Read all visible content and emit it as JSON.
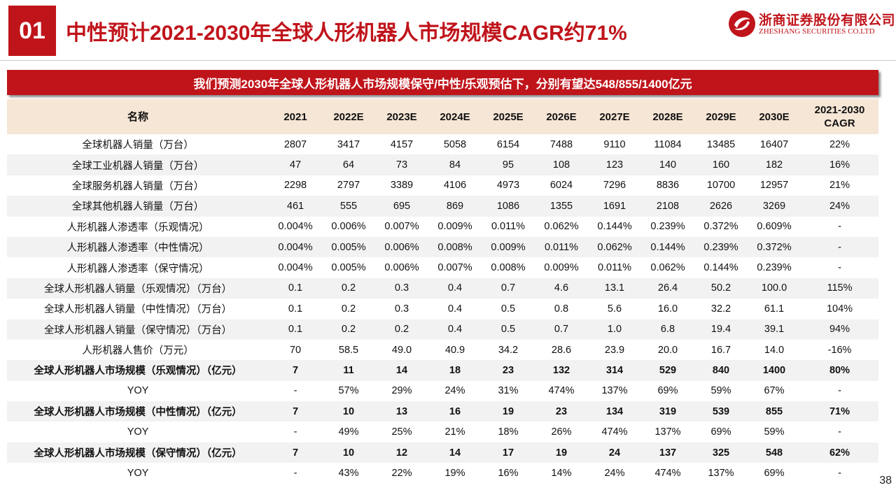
{
  "header": {
    "section_number": "01",
    "title": "中性预计2021-2030年全球人形机器人市场规模CAGR约71%",
    "logo_cn": "浙商证券股份有限公司",
    "logo_en": "ZHESHANG SECURITIES CO.LTD",
    "brand_color": "#c0141b"
  },
  "banner": "我们预测2030年全球人形机器人市场规模保守/中性/乐观预估下，分别有望达548/855/1400亿元",
  "table": {
    "columns": [
      "名称",
      "2021",
      "2022E",
      "2023E",
      "2024E",
      "2025E",
      "2026E",
      "2027E",
      "2028E",
      "2029E",
      "2030E",
      "2021-2030\nCAGR"
    ],
    "rows": [
      {
        "bold": false,
        "cells": [
          "全球机器人销量（万台）",
          "2807",
          "3417",
          "4157",
          "5058",
          "6154",
          "7488",
          "9110",
          "11084",
          "13485",
          "16407",
          "22%"
        ]
      },
      {
        "bold": false,
        "cells": [
          "全球工业机器人销量（万台）",
          "47",
          "64",
          "73",
          "84",
          "95",
          "108",
          "123",
          "140",
          "160",
          "182",
          "16%"
        ]
      },
      {
        "bold": false,
        "cells": [
          "全球服务机器人销量（万台）",
          "2298",
          "2797",
          "3389",
          "4106",
          "4973",
          "6024",
          "7296",
          "8836",
          "10700",
          "12957",
          "21%"
        ]
      },
      {
        "bold": false,
        "cells": [
          "全球其他机器人销量（万台）",
          "461",
          "555",
          "695",
          "869",
          "1086",
          "1355",
          "1691",
          "2108",
          "2626",
          "3269",
          "24%"
        ]
      },
      {
        "bold": false,
        "cells": [
          "人形机器人渗透率（乐观情况）",
          "0.004%",
          "0.006%",
          "0.007%",
          "0.009%",
          "0.011%",
          "0.062%",
          "0.144%",
          "0.239%",
          "0.372%",
          "0.609%",
          "-"
        ]
      },
      {
        "bold": false,
        "cells": [
          "人形机器人渗透率（中性情况）",
          "0.004%",
          "0.005%",
          "0.006%",
          "0.008%",
          "0.009%",
          "0.011%",
          "0.062%",
          "0.144%",
          "0.239%",
          "0.372%",
          "-"
        ]
      },
      {
        "bold": false,
        "cells": [
          "人形机器人渗透率（保守情况）",
          "0.004%",
          "0.005%",
          "0.006%",
          "0.007%",
          "0.008%",
          "0.009%",
          "0.011%",
          "0.062%",
          "0.144%",
          "0.239%",
          "-"
        ]
      },
      {
        "bold": false,
        "cells": [
          "全球人形机器人销量（乐观情况）（万台）",
          "0.1",
          "0.2",
          "0.3",
          "0.4",
          "0.7",
          "4.6",
          "13.1",
          "26.4",
          "50.2",
          "100.0",
          "115%"
        ]
      },
      {
        "bold": false,
        "cells": [
          "全球人形机器人销量（中性情况）（万台）",
          "0.1",
          "0.2",
          "0.3",
          "0.4",
          "0.5",
          "0.8",
          "5.6",
          "16.0",
          "32.2",
          "61.1",
          "104%"
        ]
      },
      {
        "bold": false,
        "cells": [
          "全球人形机器人销量（保守情况）（万台）",
          "0.1",
          "0.2",
          "0.2",
          "0.4",
          "0.5",
          "0.7",
          "1.0",
          "6.8",
          "19.4",
          "39.1",
          "94%"
        ]
      },
      {
        "bold": false,
        "cells": [
          "人形机器人售价（万元）",
          "70",
          "58.5",
          "49.0",
          "40.9",
          "34.2",
          "28.6",
          "23.9",
          "20.0",
          "16.7",
          "14.0",
          "-16%"
        ]
      },
      {
        "bold": true,
        "cells": [
          "全球人形机器人市场规模（乐观情况）（亿元）",
          "7",
          "11",
          "14",
          "18",
          "23",
          "132",
          "314",
          "529",
          "840",
          "1400",
          "80%"
        ]
      },
      {
        "bold": false,
        "cells": [
          "YOY",
          "-",
          "57%",
          "29%",
          "24%",
          "31%",
          "474%",
          "137%",
          "69%",
          "59%",
          "67%",
          "-"
        ]
      },
      {
        "bold": true,
        "cells": [
          "全球人形机器人市场规模（中性情况）（亿元）",
          "7",
          "10",
          "13",
          "16",
          "19",
          "23",
          "134",
          "319",
          "539",
          "855",
          "71%"
        ]
      },
      {
        "bold": false,
        "cells": [
          "YOY",
          "-",
          "49%",
          "25%",
          "21%",
          "18%",
          "26%",
          "474%",
          "137%",
          "69%",
          "59%",
          "-"
        ]
      },
      {
        "bold": true,
        "cells": [
          "全球人形机器人市场规模（保守情况）（亿元）",
          "7",
          "10",
          "12",
          "14",
          "17",
          "19",
          "24",
          "137",
          "325",
          "548",
          "62%"
        ]
      },
      {
        "bold": false,
        "cells": [
          "YOY",
          "-",
          "43%",
          "22%",
          "19%",
          "16%",
          "14%",
          "24%",
          "474%",
          "137%",
          "69%",
          "-"
        ]
      }
    ]
  },
  "page_number": "38",
  "icons": {
    "logo": "zheshang-logo-icon"
  }
}
